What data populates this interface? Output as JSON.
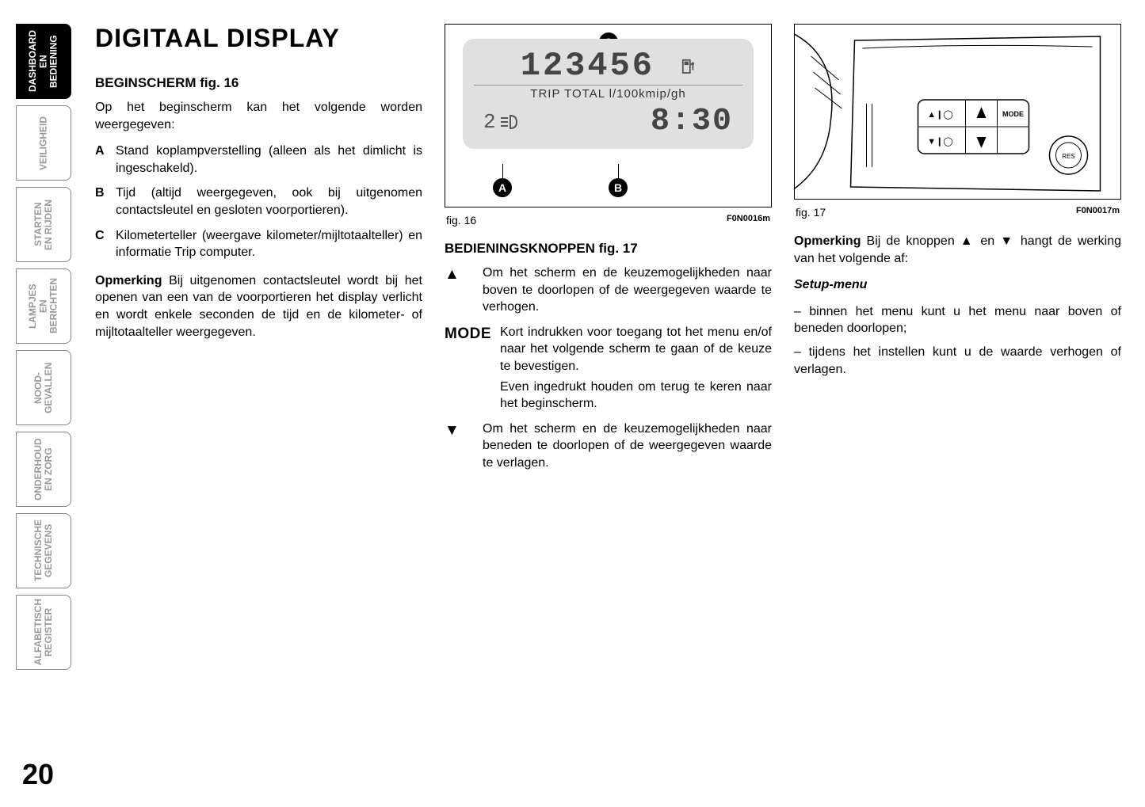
{
  "sidebar": {
    "tabs": [
      {
        "label": "DASHBOARD\nEN BEDIENING",
        "active": true
      },
      {
        "label": "VEILIGHEID",
        "active": false
      },
      {
        "label": "STARTEN\nEN RIJDEN",
        "active": false
      },
      {
        "label": "LAMPJES EN\nBERICHTEN",
        "active": false
      },
      {
        "label": "NOOD-\nGEVALLEN",
        "active": false
      },
      {
        "label": "ONDERHOUD\nEN ZORG",
        "active": false
      },
      {
        "label": "TECHNISCHE\nGEGEVENS",
        "active": false
      },
      {
        "label": "ALFABETISCH\nREGISTER",
        "active": false
      }
    ]
  },
  "pageNumber": "20",
  "title": "DIGITAAL DISPLAY",
  "col1": {
    "heading": "BEGINSCHERM fig. 16",
    "intro": "Op het beginscherm kan het volgende worden weergegeven:",
    "items": [
      {
        "letter": "A",
        "text": "Stand koplampverstelling (alleen als het dimlicht is ingeschakeld)."
      },
      {
        "letter": "B",
        "text": "Tijd (altijd weergegeven, ook bij uitgenomen contactsleutel en gesloten voorportieren)."
      },
      {
        "letter": "C",
        "text": "Kilometerteller (weergave kilometer/mijltotaalteller) en informatie Trip computer."
      }
    ],
    "noteLabel": "Opmerking",
    "noteText": " Bij uitgenomen contactsleutel wordt bij het openen van een van de voorportieren het display verlicht en wordt enkele seconden de tijd en de kilometer- of mijltotaalteller weergegeven."
  },
  "fig16": {
    "caption": "fig. 16",
    "code": "F0N0016m",
    "odo": "123456",
    "mid": "TRIP TOTAL  l/100kmip/gh",
    "headlampLevel": "2",
    "clock": "8:30",
    "markers": {
      "C": "C",
      "A": "A",
      "B": "B"
    }
  },
  "col2": {
    "heading": "BEDIENINGSKNOPPEN fig. 17",
    "items": [
      {
        "icon": "▲",
        "text": "Om het scherm en de keuzemogelijkheden naar boven te doorlopen of de weergegeven waarde te verhogen."
      },
      {
        "icon": "MODE",
        "text": "Kort indrukken voor toegang tot het menu en/of naar het volgende scherm te gaan of de keuze te bevestigen.",
        "isMode": true
      },
      {
        "icon": "",
        "text": "Even ingedrukt houden om terug te keren naar het beginscherm.",
        "sub": true
      },
      {
        "icon": "▼",
        "text": "Om het scherm en de keuzemogelijkheden naar beneden te doorlopen of de weergegeven waarde te verlagen."
      }
    ]
  },
  "fig17": {
    "caption": "fig. 17",
    "code": "F0N0017m"
  },
  "col3": {
    "noteLabel": "Opmerking",
    "noteText": " Bij de knoppen ▲ en ▼ hangt de werking van het volgende af:",
    "subhead": "Setup-menu",
    "bullets": [
      "– binnen het menu kunt u het menu naar boven of beneden doorlopen;",
      "– tijdens het instellen kunt u de waarde verhogen of verlagen."
    ]
  }
}
